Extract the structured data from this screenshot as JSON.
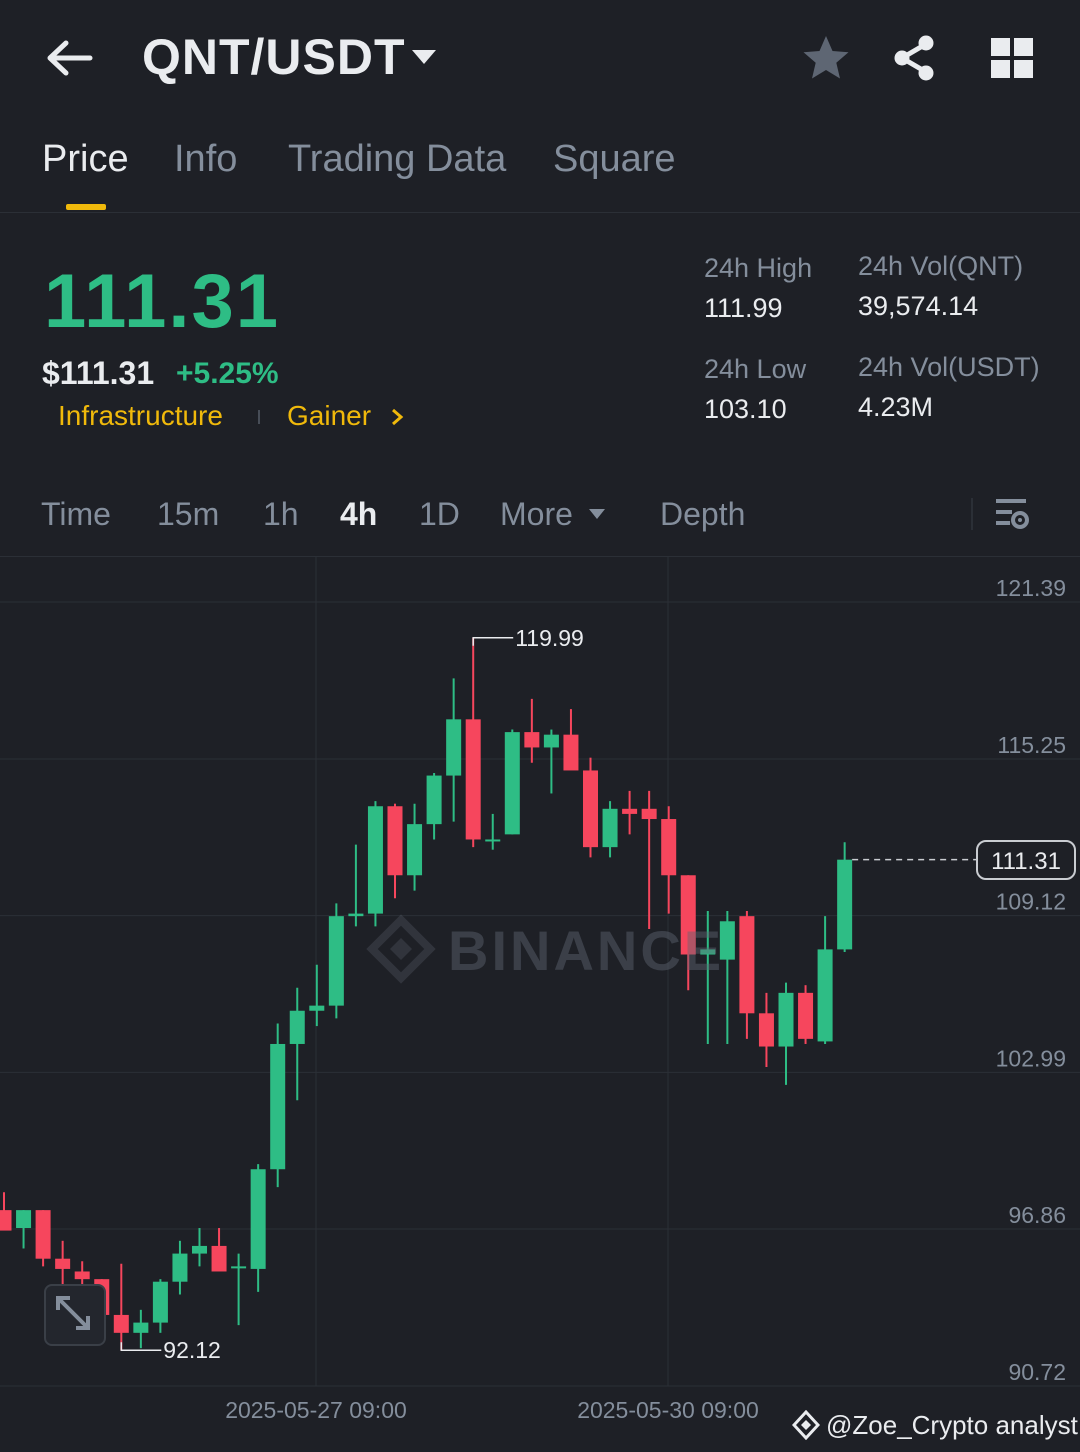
{
  "header": {
    "pair": "QNT/USDT",
    "icons": [
      "back-arrow-icon",
      "caret-down-icon",
      "star-icon",
      "share-icon",
      "grid-icon"
    ]
  },
  "tabs": [
    {
      "label": "Price",
      "active": true
    },
    {
      "label": "Info",
      "active": false
    },
    {
      "label": "Trading Data",
      "active": false
    },
    {
      "label": "Square",
      "active": false
    }
  ],
  "price": {
    "last": "111.31",
    "usd": "$111.31",
    "change_pct": "+5.25%",
    "tags": [
      "Infrastructure",
      "Gainer"
    ]
  },
  "stats": {
    "high_label": "24h High",
    "high_value": "111.99",
    "low_label": "24h Low",
    "low_value": "103.10",
    "vol_qnt_label": "24h Vol(QNT)",
    "vol_qnt_value": "39,574.14",
    "vol_usdt_label": "24h Vol(USDT)",
    "vol_usdt_value": "4.23M"
  },
  "intervals": [
    {
      "label": "Time",
      "active": false
    },
    {
      "label": "15m",
      "active": false
    },
    {
      "label": "1h",
      "active": false
    },
    {
      "label": "4h",
      "active": true
    },
    {
      "label": "1D",
      "active": false
    },
    {
      "label": "More",
      "active": false
    },
    {
      "label": "Depth",
      "active": false
    }
  ],
  "colors": {
    "up": "#2ebd85",
    "down": "#f6465d",
    "accent": "#f0b90b",
    "bg": "#1e2026"
  },
  "watermark": "BINANCE",
  "footer": {
    "handle": "@Zoe_Crypto analyst"
  },
  "chart_data": {
    "type": "candlestick",
    "interval": "4h",
    "y_ticks": [
      "121.39",
      "115.25",
      "109.12",
      "102.99",
      "96.86",
      "90.72"
    ],
    "ylim": [
      90.72,
      121.39
    ],
    "x_ticks": [
      "2025-05-27 09:00",
      "2025-05-30 09:00"
    ],
    "last_price": "111.31",
    "high_annotation": "119.99",
    "low_annotation": "92.12",
    "candles": [
      {
        "o": 97.6,
        "h": 98.3,
        "l": 96.9,
        "c": 96.8
      },
      {
        "o": 96.9,
        "h": 97.6,
        "l": 96.1,
        "c": 97.6
      },
      {
        "o": 97.6,
        "h": 97.6,
        "l": 95.4,
        "c": 95.7
      },
      {
        "o": 95.7,
        "h": 96.4,
        "l": 94.6,
        "c": 95.3
      },
      {
        "o": 95.2,
        "h": 95.6,
        "l": 94.3,
        "c": 94.9
      },
      {
        "o": 94.9,
        "h": 94.9,
        "l": 93.0,
        "c": 93.5
      },
      {
        "o": 93.5,
        "h": 95.5,
        "l": 92.12,
        "c": 92.8
      },
      {
        "o": 92.8,
        "h": 93.7,
        "l": 92.2,
        "c": 93.2
      },
      {
        "o": 93.2,
        "h": 94.9,
        "l": 92.8,
        "c": 94.8
      },
      {
        "o": 94.8,
        "h": 96.4,
        "l": 94.3,
        "c": 95.9
      },
      {
        "o": 95.9,
        "h": 96.9,
        "l": 95.4,
        "c": 96.2
      },
      {
        "o": 96.2,
        "h": 96.9,
        "l": 95.3,
        "c": 95.2
      },
      {
        "o": 95.4,
        "h": 95.9,
        "l": 93.1,
        "c": 95.4
      },
      {
        "o": 95.3,
        "h": 99.4,
        "l": 94.4,
        "c": 99.2
      },
      {
        "o": 99.2,
        "h": 104.9,
        "l": 98.5,
        "c": 104.1
      },
      {
        "o": 104.1,
        "h": 106.3,
        "l": 101.9,
        "c": 105.4
      },
      {
        "o": 105.4,
        "h": 107.2,
        "l": 104.8,
        "c": 105.6
      },
      {
        "o": 105.6,
        "h": 109.6,
        "l": 105.1,
        "c": 109.1
      },
      {
        "o": 109.1,
        "h": 111.9,
        "l": 108.7,
        "c": 109.2
      },
      {
        "o": 109.2,
        "h": 113.6,
        "l": 108.7,
        "c": 113.4
      },
      {
        "o": 113.4,
        "h": 113.5,
        "l": 109.8,
        "c": 110.7
      },
      {
        "o": 110.7,
        "h": 113.5,
        "l": 110.1,
        "c": 112.7
      },
      {
        "o": 112.7,
        "h": 114.7,
        "l": 112.1,
        "c": 114.6
      },
      {
        "o": 114.6,
        "h": 118.4,
        "l": 112.8,
        "c": 116.8
      },
      {
        "o": 116.8,
        "h": 119.99,
        "l": 111.8,
        "c": 112.1
      },
      {
        "o": 112.1,
        "h": 113.1,
        "l": 111.7,
        "c": 112.1
      },
      {
        "o": 112.3,
        "h": 116.4,
        "l": 112.3,
        "c": 116.3
      },
      {
        "o": 116.3,
        "h": 117.6,
        "l": 115.1,
        "c": 115.7
      },
      {
        "o": 115.7,
        "h": 116.4,
        "l": 113.9,
        "c": 116.2
      },
      {
        "o": 116.2,
        "h": 117.2,
        "l": 115.1,
        "c": 114.8
      },
      {
        "o": 114.8,
        "h": 115.3,
        "l": 111.4,
        "c": 111.8
      },
      {
        "o": 111.8,
        "h": 113.6,
        "l": 111.4,
        "c": 113.3
      },
      {
        "o": 113.3,
        "h": 114.0,
        "l": 112.3,
        "c": 113.1
      },
      {
        "o": 113.3,
        "h": 114.0,
        "l": 108.6,
        "c": 112.9
      },
      {
        "o": 112.9,
        "h": 113.4,
        "l": 109.2,
        "c": 110.7
      },
      {
        "o": 110.7,
        "h": 110.7,
        "l": 106.2,
        "c": 107.6
      },
      {
        "o": 107.6,
        "h": 109.3,
        "l": 104.1,
        "c": 107.8
      },
      {
        "o": 107.4,
        "h": 109.3,
        "l": 104.1,
        "c": 108.9
      },
      {
        "o": 109.1,
        "h": 109.3,
        "l": 104.3,
        "c": 105.3
      },
      {
        "o": 105.3,
        "h": 106.1,
        "l": 103.2,
        "c": 104.0
      },
      {
        "o": 104.0,
        "h": 106.5,
        "l": 102.5,
        "c": 106.1
      },
      {
        "o": 106.1,
        "h": 106.4,
        "l": 104.1,
        "c": 104.3
      },
      {
        "o": 104.2,
        "h": 109.1,
        "l": 104.1,
        "c": 107.8
      },
      {
        "o": 107.8,
        "h": 111.99,
        "l": 107.7,
        "c": 111.31
      }
    ]
  }
}
